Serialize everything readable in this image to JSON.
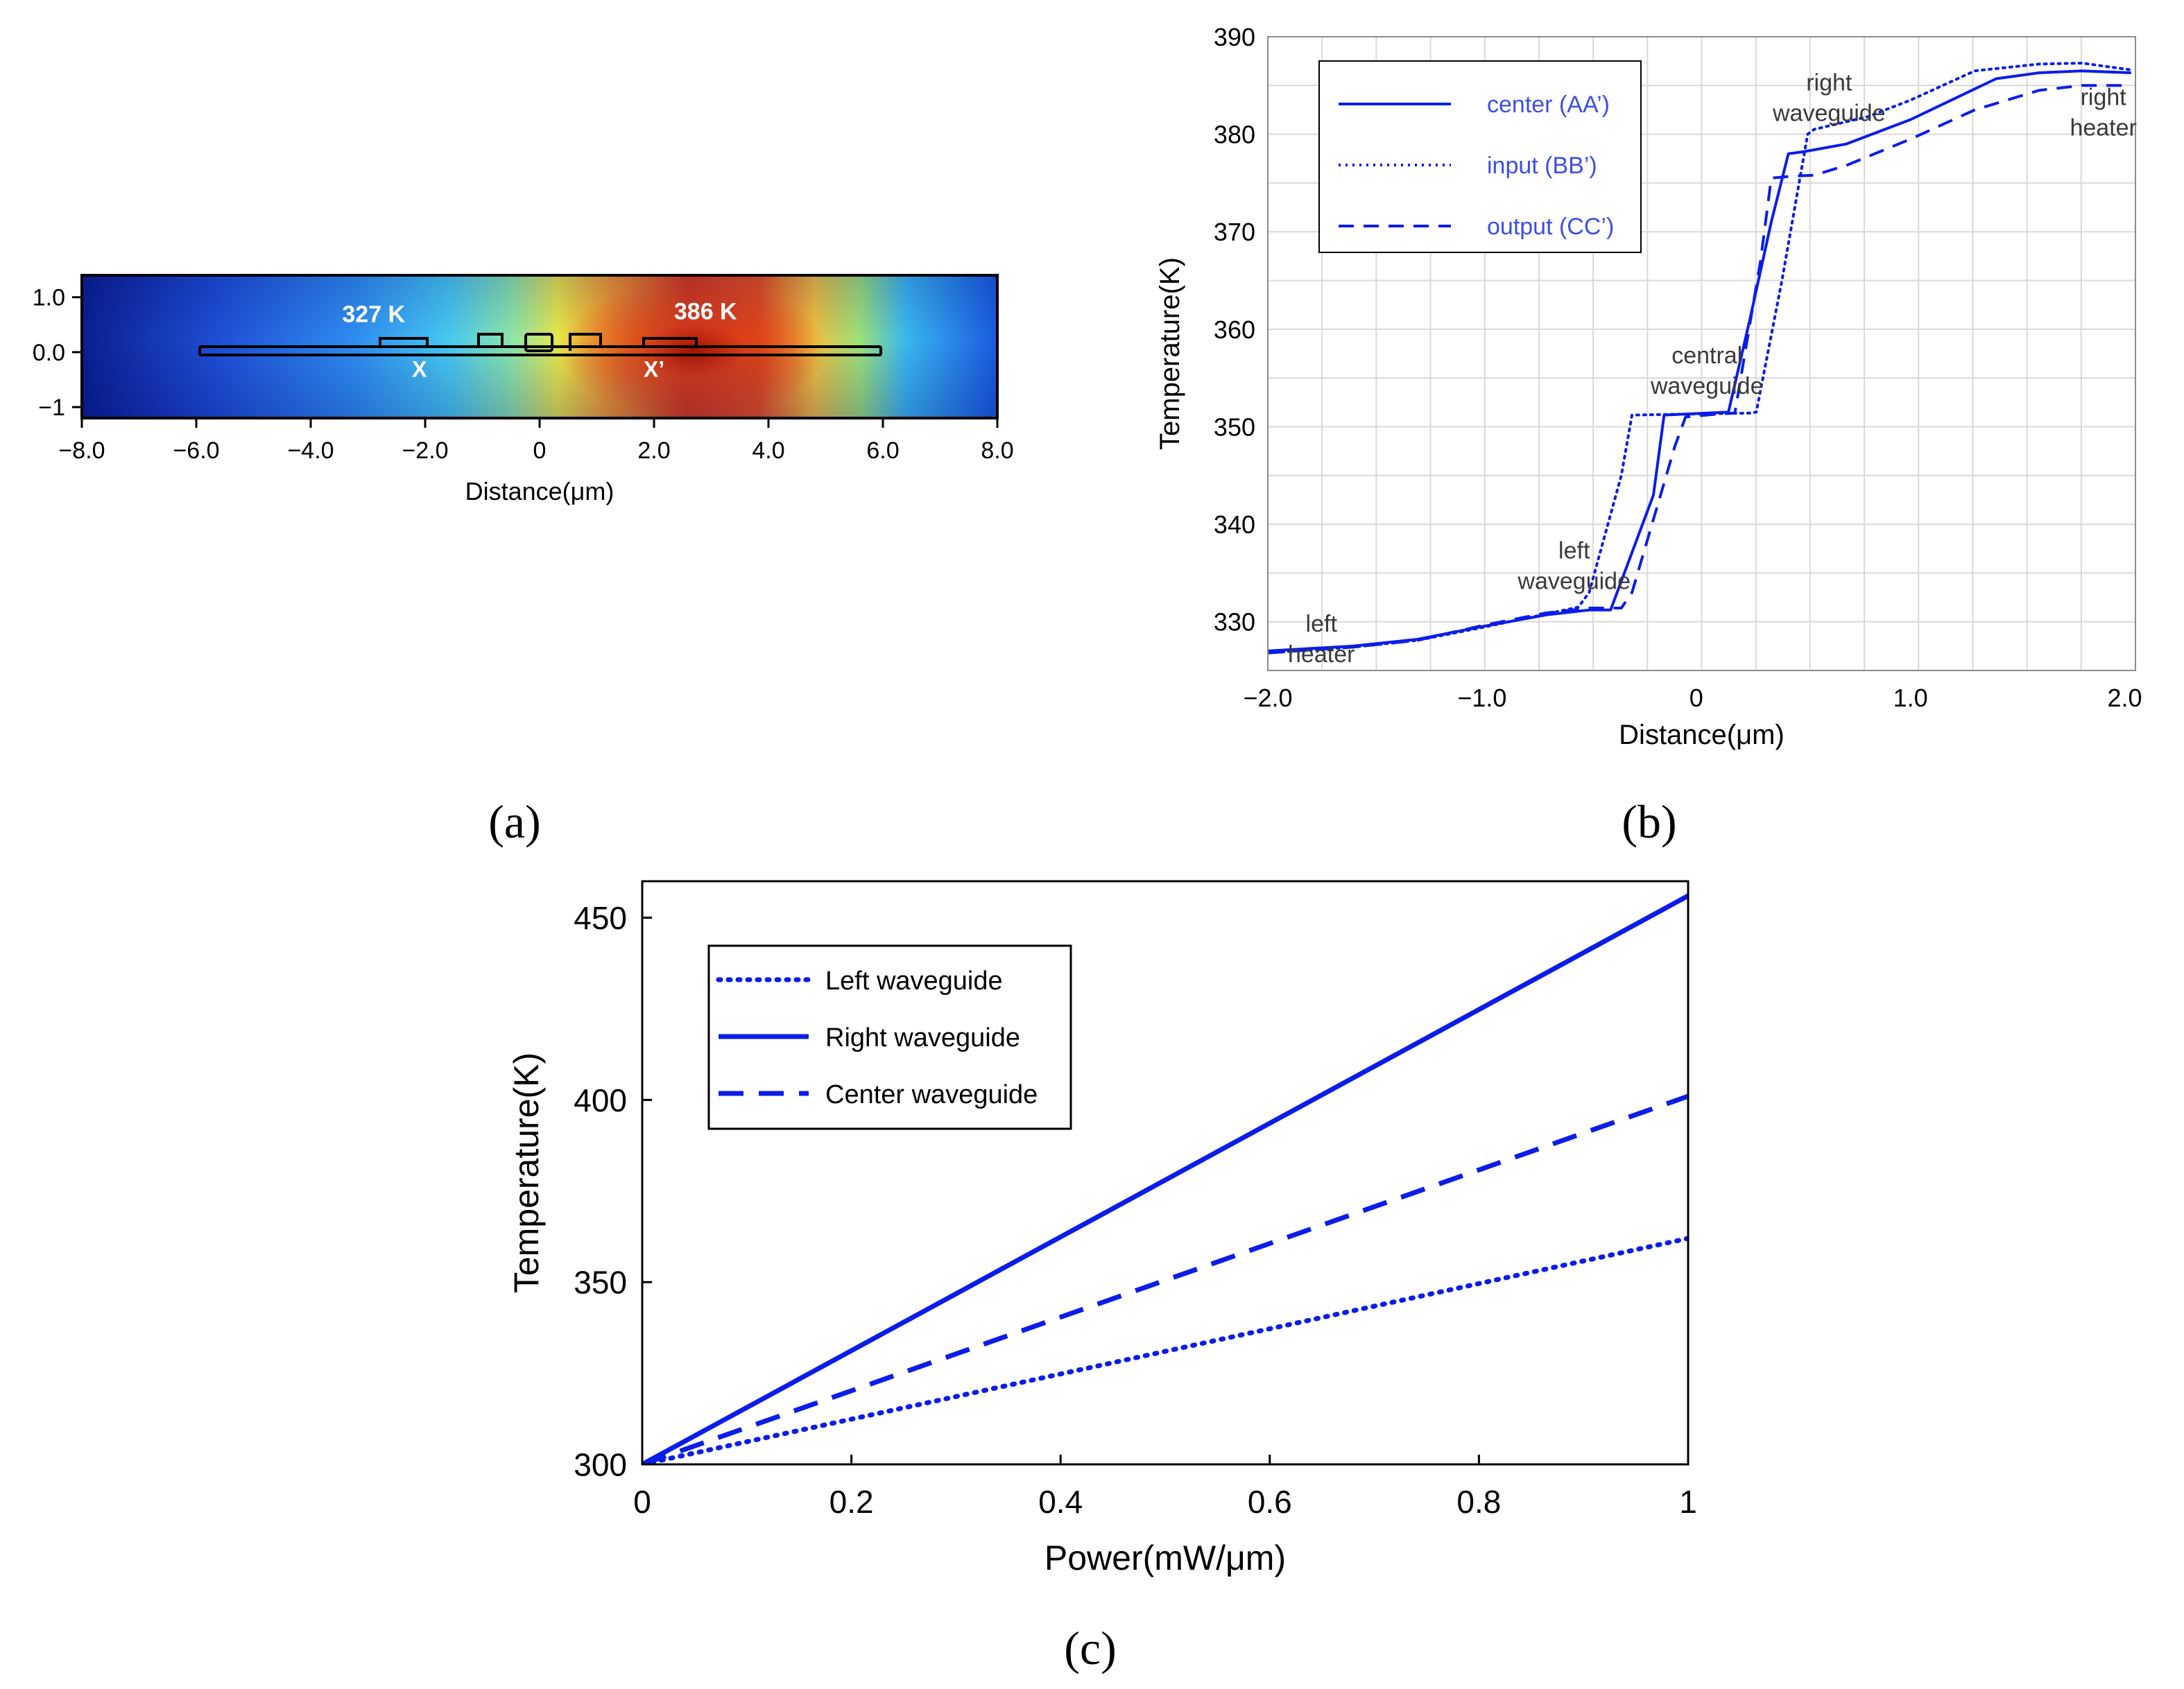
{
  "panel_labels": {
    "a": "(a)",
    "b": "(b)",
    "c": "(c)"
  },
  "colors": {
    "line": "#0b1de8",
    "annotation": "#3a3a3a",
    "legend_text_b": "#3b4fe6",
    "grid": "#d9d9d9"
  },
  "chart_data": [
    {
      "id": "a",
      "type": "heatmap",
      "title": "",
      "xlabel": "Distance(μm)",
      "ylabel": "",
      "xlim": [
        -8.0,
        8.0
      ],
      "ylim": [
        -1.2,
        1.4
      ],
      "x_ticks": [
        -8.0,
        -6.0,
        -4.0,
        -2.0,
        0,
        2.0,
        4.0,
        6.0,
        8.0
      ],
      "x_tick_labels": [
        "−8.0",
        "−6.0",
        "−4.0",
        "−2.0",
        "0",
        "2.0",
        "4.0",
        "6.0",
        "8.0"
      ],
      "y_ticks": [
        1.0,
        0.0,
        -1.0
      ],
      "y_tick_labels": [
        "1.0",
        "0.0",
        "−1"
      ],
      "annotations": {
        "min_temp": "327 K",
        "max_temp": "386 K",
        "x_mark": "X",
        "x_prime_mark": "X’"
      },
      "colormap": "jet",
      "hotspot_x_um": 2.6
    },
    {
      "id": "b",
      "type": "line",
      "title": "",
      "xlabel": "Distance(μm)",
      "ylabel": "Temperature(K)",
      "xlim": [
        -2.0,
        2.05
      ],
      "ylim": [
        325,
        390
      ],
      "x_ticks": [
        -2.0,
        -1.0,
        0,
        1.0,
        2.0
      ],
      "x_tick_labels": [
        "−2.0",
        "−1.0",
        "0",
        "1.0",
        "2.0"
      ],
      "y_ticks": [
        330,
        340,
        350,
        360,
        370,
        380,
        390
      ],
      "y_tick_labels": [
        "330",
        "340",
        "350",
        "360",
        "370",
        "380",
        "390"
      ],
      "grid": true,
      "legend": [
        "center (AA’)",
        "input (BB’)",
        "output (CC’)"
      ],
      "annotations": [
        {
          "lines": [
            "left",
            "heater"
          ],
          "x": -1.75,
          "y": 329
        },
        {
          "lines": [
            "left",
            "waveguide"
          ],
          "x": -0.57,
          "y": 336.5
        },
        {
          "lines": [
            "central",
            "waveguide"
          ],
          "x": 0.05,
          "y": 356.5
        },
        {
          "lines": [
            "right",
            "waveguide"
          ],
          "x": 0.62,
          "y": 384.5
        },
        {
          "lines": [
            "right",
            "heater"
          ],
          "x": 1.9,
          "y": 383
        }
      ],
      "series": [
        {
          "name": "center (AA’)",
          "style": "solid",
          "x": [
            -2.0,
            -1.6,
            -1.3,
            -1.0,
            -0.7,
            -0.5,
            -0.4,
            -0.2,
            -0.15,
            0.05,
            0.15,
            0.25,
            0.35,
            0.43,
            0.5,
            0.7,
            1.0,
            1.4,
            1.6,
            1.8,
            2.03
          ],
          "y": [
            327,
            327.5,
            328.2,
            329.5,
            330.7,
            331.2,
            331.2,
            343,
            351.2,
            351.4,
            351.5,
            361,
            371,
            378,
            378.2,
            379,
            381.5,
            385.7,
            386.3,
            386.5,
            386.3
          ]
        },
        {
          "name": "input (BB’)",
          "style": "dotted",
          "x": [
            -2.0,
            -1.6,
            -1.3,
            -1.0,
            -0.7,
            -0.55,
            -0.5,
            -0.35,
            -0.3,
            0.25,
            0.28,
            0.4,
            0.52,
            0.55,
            0.8,
            1.0,
            1.3,
            1.6,
            1.8,
            2.03
          ],
          "y": [
            326.8,
            327.4,
            328.1,
            329.4,
            330.8,
            331.5,
            333,
            345,
            351.2,
            351.4,
            351.5,
            365,
            380,
            380.5,
            381.8,
            383.5,
            386.5,
            387.2,
            387.3,
            386.6
          ]
        },
        {
          "name": "output (CC’)",
          "style": "dashed",
          "x": [
            -2.0,
            -1.6,
            -1.3,
            -1.0,
            -0.7,
            -0.5,
            -0.35,
            -0.3,
            -0.1,
            -0.05,
            0.1,
            0.18,
            0.3,
            0.35,
            0.45,
            0.55,
            0.7,
            1.0,
            1.3,
            1.6,
            1.8,
            2.03
          ],
          "y": [
            326.8,
            327.4,
            328.1,
            329.6,
            330.9,
            331.4,
            331.4,
            333,
            348,
            351,
            351.3,
            351.4,
            367,
            375.5,
            375.7,
            375.8,
            376.8,
            379.5,
            382.5,
            384.5,
            385,
            385
          ]
        }
      ]
    },
    {
      "id": "c",
      "type": "line",
      "title": "",
      "xlabel": "Power(mW/μm)",
      "ylabel": "Temperature(K)",
      "xlim": [
        0,
        1
      ],
      "ylim": [
        300,
        460
      ],
      "x_ticks": [
        0,
        0.2,
        0.4,
        0.6,
        0.8,
        1
      ],
      "x_tick_labels": [
        "0",
        "0.2",
        "0.4",
        "0.6",
        "0.8",
        "1"
      ],
      "y_ticks": [
        300,
        350,
        400,
        450
      ],
      "y_tick_labels": [
        "300",
        "350",
        "400",
        "450"
      ],
      "grid": false,
      "legend": [
        "Left waveguide",
        "Right waveguide",
        "Center waveguide"
      ],
      "series": [
        {
          "name": "Left waveguide",
          "style": "dotted",
          "x": [
            0,
            1
          ],
          "y": [
            300,
            362
          ]
        },
        {
          "name": "Right waveguide",
          "style": "solid",
          "x": [
            0,
            1
          ],
          "y": [
            300,
            456
          ]
        },
        {
          "name": "Center waveguide",
          "style": "dashed",
          "x": [
            0,
            1
          ],
          "y": [
            300,
            401
          ]
        }
      ]
    }
  ]
}
